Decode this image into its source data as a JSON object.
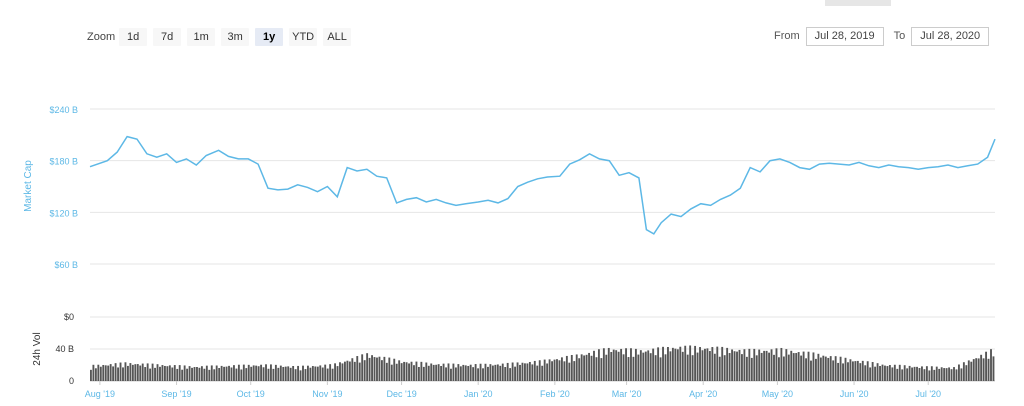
{
  "zoom": {
    "label": "Zoom",
    "buttons": [
      "1d",
      "7d",
      "1m",
      "3m",
      "1y",
      "YTD",
      "ALL"
    ],
    "active": "1y"
  },
  "range": {
    "from_label": "From",
    "from_value": "Jul 28, 2019",
    "to_label": "To",
    "to_value": "Jul 28, 2020"
  },
  "colors": {
    "line": "#5db8e6",
    "volume_bar": "#555555",
    "axis_text": "#5db8e6",
    "grid": "#e6e6e6"
  },
  "chart_data": [
    {
      "type": "line",
      "ylabel": "Market Cap",
      "ylim": [
        60,
        240
      ],
      "yticks": [
        "$60 B",
        "$120 B",
        "$180 B",
        "$240 B"
      ],
      "x_tick_labels": [
        "Aug '19",
        "Sep '19",
        "Oct '19",
        "Nov '19",
        "Dec '19",
        "Jan '20",
        "Feb '20",
        "Mar '20",
        "Apr '20",
        "May '20",
        "Jun '20",
        "Jul '20"
      ],
      "x": [
        "2019-07-28",
        "2019-08-04",
        "2019-08-08",
        "2019-08-12",
        "2019-08-16",
        "2019-08-20",
        "2019-08-24",
        "2019-08-28",
        "2019-09-01",
        "2019-09-05",
        "2019-09-09",
        "2019-09-13",
        "2019-09-18",
        "2019-09-22",
        "2019-09-26",
        "2019-09-30",
        "2019-10-04",
        "2019-10-08",
        "2019-10-12",
        "2019-10-16",
        "2019-10-20",
        "2019-10-24",
        "2019-10-28",
        "2019-11-01",
        "2019-11-05",
        "2019-11-09",
        "2019-11-13",
        "2019-11-17",
        "2019-11-21",
        "2019-11-25",
        "2019-11-29",
        "2019-12-03",
        "2019-12-07",
        "2019-12-11",
        "2019-12-15",
        "2019-12-19",
        "2019-12-23",
        "2019-12-27",
        "2020-01-01",
        "2020-01-05",
        "2020-01-09",
        "2020-01-13",
        "2020-01-17",
        "2020-01-21",
        "2020-01-25",
        "2020-01-29",
        "2020-02-03",
        "2020-02-07",
        "2020-02-11",
        "2020-02-15",
        "2020-02-19",
        "2020-02-23",
        "2020-02-27",
        "2020-03-02",
        "2020-03-06",
        "2020-03-09",
        "2020-03-12",
        "2020-03-15",
        "2020-03-19",
        "2020-03-23",
        "2020-03-27",
        "2020-03-31",
        "2020-04-04",
        "2020-04-08",
        "2020-04-12",
        "2020-04-16",
        "2020-04-20",
        "2020-04-24",
        "2020-04-28",
        "2020-05-02",
        "2020-05-06",
        "2020-05-10",
        "2020-05-14",
        "2020-05-18",
        "2020-05-22",
        "2020-05-26",
        "2020-05-30",
        "2020-06-03",
        "2020-06-07",
        "2020-06-11",
        "2020-06-15",
        "2020-06-19",
        "2020-06-23",
        "2020-06-27",
        "2020-07-01",
        "2020-07-05",
        "2020-07-09",
        "2020-07-13",
        "2020-07-17",
        "2020-07-21",
        "2020-07-25",
        "2020-07-28"
      ],
      "values": [
        173,
        180,
        190,
        208,
        205,
        188,
        184,
        188,
        178,
        182,
        175,
        186,
        192,
        185,
        182,
        182,
        176,
        148,
        146,
        147,
        152,
        149,
        144,
        150,
        138,
        172,
        168,
        170,
        162,
        160,
        131,
        135,
        137,
        132,
        135,
        131,
        128,
        130,
        132,
        134,
        131,
        136,
        150,
        155,
        159,
        161,
        162,
        176,
        181,
        188,
        182,
        180,
        163,
        166,
        160,
        100,
        95,
        108,
        118,
        115,
        124,
        130,
        128,
        135,
        140,
        148,
        172,
        167,
        180,
        182,
        178,
        172,
        170,
        176,
        177,
        176,
        175,
        178,
        174,
        172,
        175,
        173,
        172,
        170,
        172,
        173,
        175,
        172,
        174,
        176,
        184,
        205
      ]
    },
    {
      "type": "bar",
      "ylabel": "24h Vol",
      "ylim": [
        0,
        80
      ],
      "yticks": [
        "0",
        "40 B",
        "$0"
      ],
      "x": [
        "2019-07-28",
        "2019-08-11",
        "2019-08-25",
        "2019-09-08",
        "2019-09-22",
        "2019-10-06",
        "2019-10-20",
        "2019-11-03",
        "2019-11-17",
        "2019-12-01",
        "2019-12-15",
        "2019-12-29",
        "2020-01-12",
        "2020-01-26",
        "2020-02-09",
        "2020-02-23",
        "2020-03-08",
        "2020-03-22",
        "2020-04-05",
        "2020-04-19",
        "2020-05-03",
        "2020-05-17",
        "2020-05-31",
        "2020-06-14",
        "2020-06-28",
        "2020-07-12",
        "2020-07-28"
      ],
      "values": [
        17,
        20,
        18,
        16,
        17,
        18,
        16,
        18,
        30,
        22,
        19,
        18,
        19,
        22,
        28,
        36,
        34,
        38,
        37,
        34,
        35,
        30,
        24,
        18,
        16,
        15,
        35
      ]
    }
  ]
}
